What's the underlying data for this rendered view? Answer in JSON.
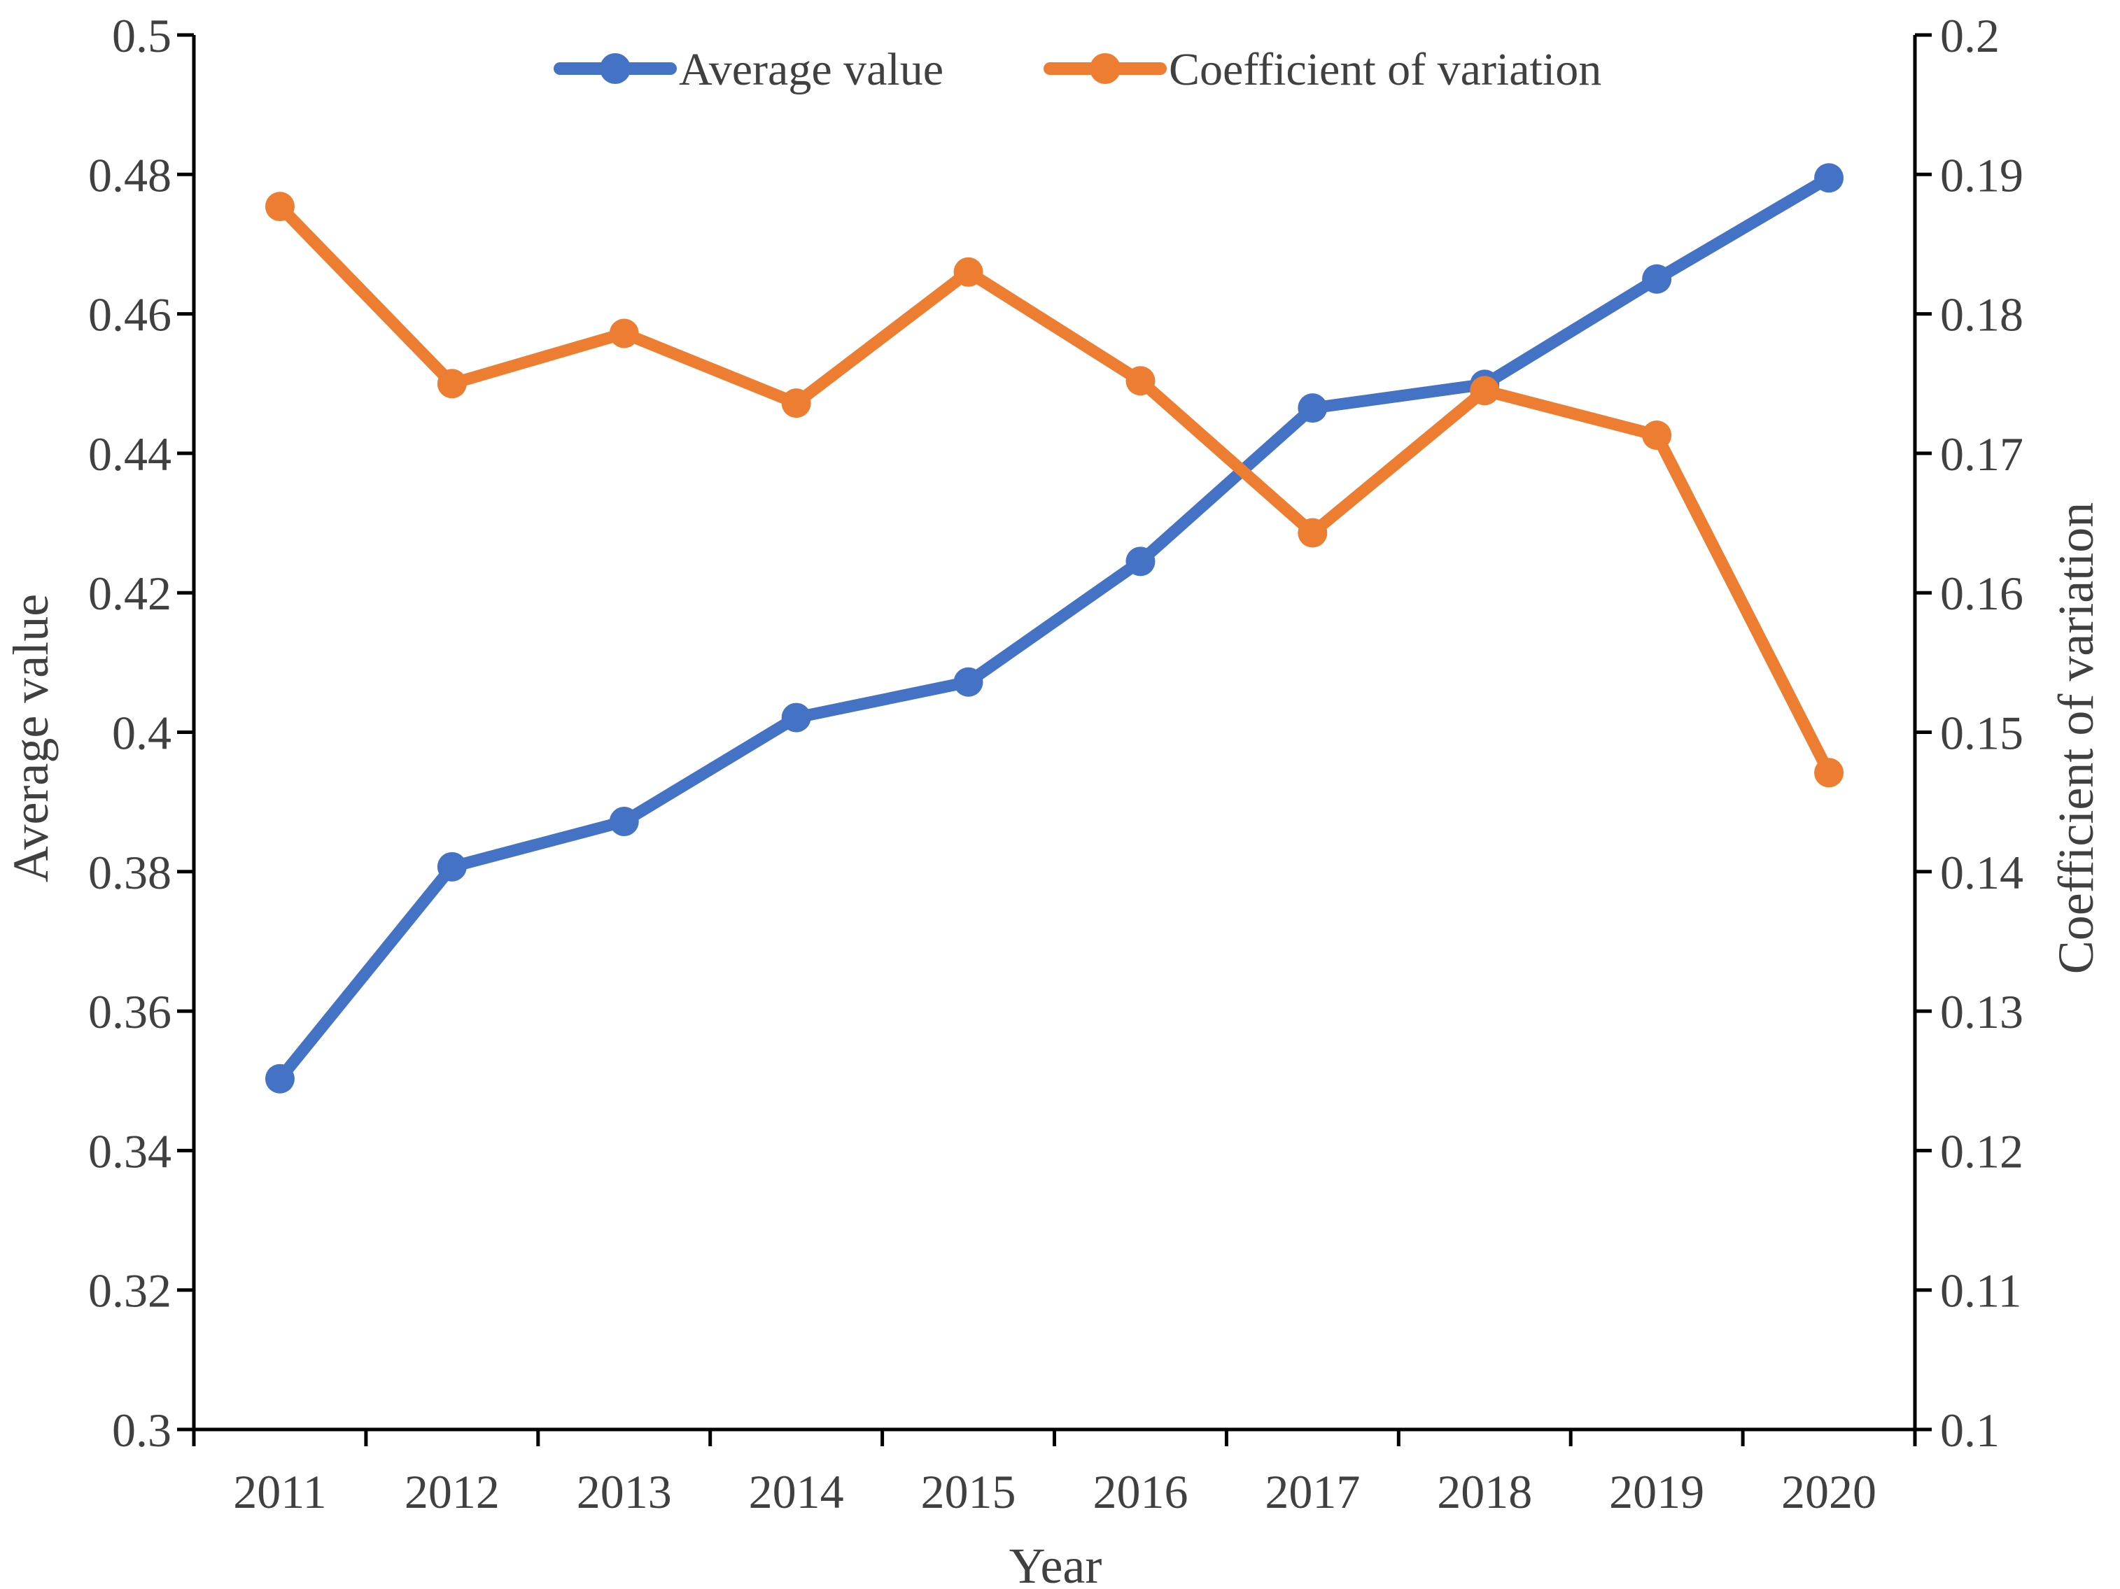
{
  "chart_data": {
    "type": "line",
    "title": "",
    "x": [
      "2011",
      "2012",
      "2013",
      "2014",
      "2015",
      "2016",
      "2017",
      "2018",
      "2019",
      "2020"
    ],
    "xlabel": "Year",
    "ylabel_left": "Average value",
    "ylabel_right": "Coefficient of variation",
    "ylim_left": [
      0.3,
      0.5
    ],
    "ylim_right": [
      0.1,
      0.2
    ],
    "yticks_left": [
      "0.3",
      "0.32",
      "0.34",
      "0.36",
      "0.38",
      "0.4",
      "0.42",
      "0.44",
      "0.46",
      "0.48",
      "0.5"
    ],
    "yticks_right": [
      "0.1",
      "0.11",
      "0.12",
      "0.13",
      "0.14",
      "0.15",
      "0.16",
      "0.17",
      "0.18",
      "0.19",
      "0.2"
    ],
    "grid": false,
    "legend_position": "top-center",
    "series": [
      {
        "name": "Average value",
        "axis": "left",
        "color": "#4472C4",
        "values": [
          0.3503,
          0.3807,
          0.3872,
          0.4021,
          0.4072,
          0.4245,
          0.4465,
          0.4499,
          0.465,
          0.4795
        ]
      },
      {
        "name": "Coefficient of variation",
        "axis": "right",
        "color": "#ED7D31",
        "values": [
          0.1877,
          0.175,
          0.1786,
          0.1736,
          0.183,
          0.1752,
          0.1643,
          0.1745,
          0.1713,
          0.1471
        ]
      }
    ]
  }
}
